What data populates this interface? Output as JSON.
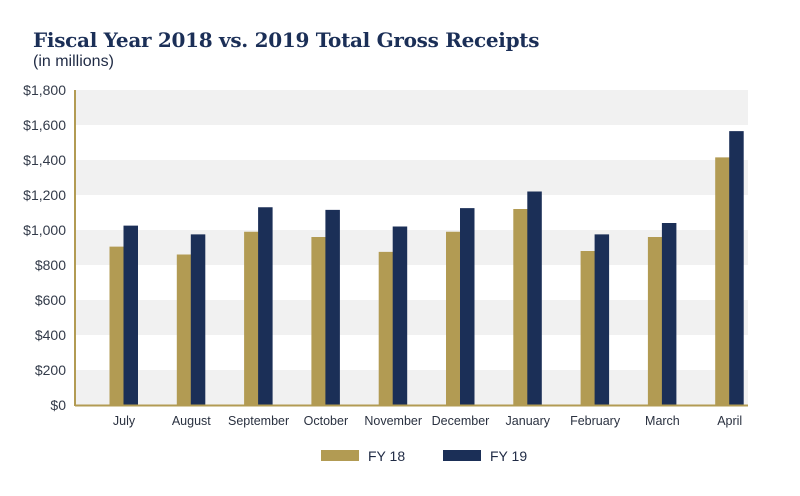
{
  "chart_data": {
    "type": "bar",
    "title": "Fiscal Year 2018 vs. 2019 Total Gross Receipts",
    "subtitle": "(in millions)",
    "xlabel": "",
    "ylabel": "",
    "categories": [
      "July",
      "August",
      "September",
      "October",
      "November",
      "December",
      "January",
      "February",
      "March",
      "April"
    ],
    "series": [
      {
        "name": "FY 18",
        "color": "#b29b53",
        "values": [
          905,
          860,
          990,
          960,
          875,
          990,
          1120,
          880,
          960,
          1415
        ]
      },
      {
        "name": "FY 19",
        "color": "#1b2f57",
        "values": [
          1025,
          975,
          1130,
          1115,
          1020,
          1125,
          1220,
          975,
          1040,
          1565
        ]
      }
    ],
    "ylim": [
      0,
      1800
    ],
    "yticks": [
      0,
      200,
      400,
      600,
      800,
      1000,
      1200,
      1400,
      1600,
      1800
    ],
    "ytick_labels": [
      "$0",
      "$200",
      "$400",
      "$600",
      "$800",
      "$1,000",
      "$1,200",
      "$1,400",
      "$1,600",
      "$1,800"
    ],
    "grid": "alternating horizontal bands",
    "legend_position": "bottom-center",
    "axis_color": "#b29b53",
    "band_color": "#f1f1f1"
  }
}
